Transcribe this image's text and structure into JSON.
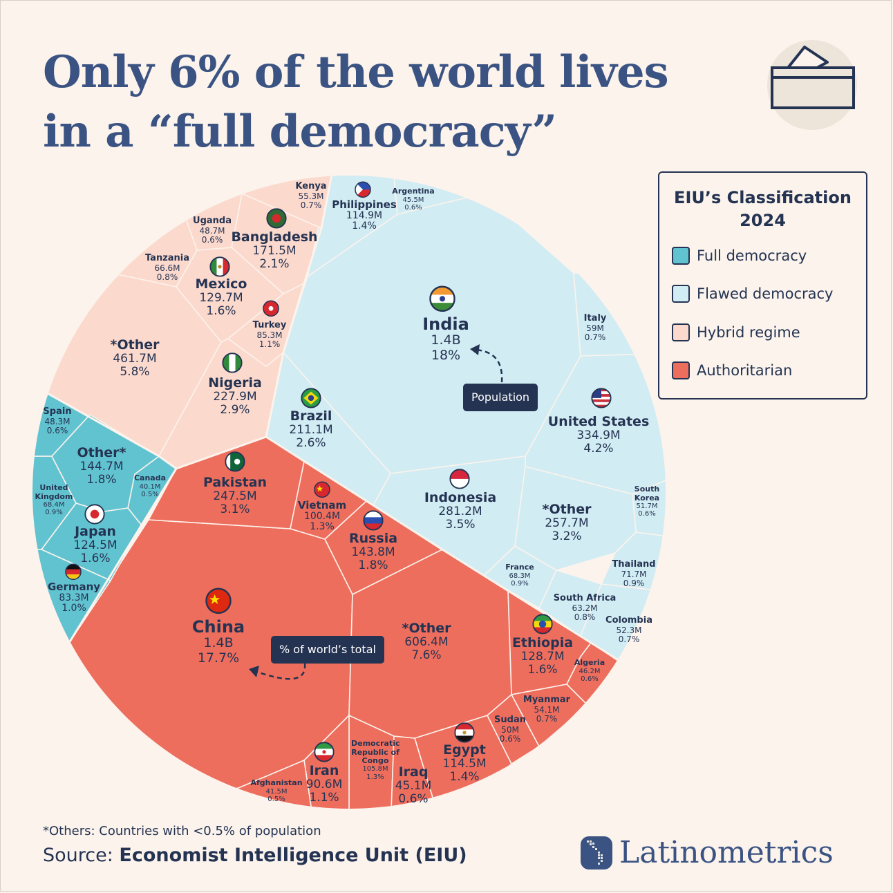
{
  "header": {
    "title_line1": "Only 6% of the world lives",
    "title_line2": "in a “full democracy”",
    "icon": "ballot-box-icon"
  },
  "legend": {
    "title_line1": "EIU’s Classification",
    "title_line2": "2024",
    "items": [
      {
        "label": "Full democracy",
        "color": "#62c3d0"
      },
      {
        "label": "Flawed democracy",
        "color": "#d2ecf3"
      },
      {
        "label": "Hybrid regime",
        "color": "#fcd9cd"
      },
      {
        "label": "Authoritarian",
        "color": "#ee6e5e"
      }
    ]
  },
  "annotations": {
    "population": "Population",
    "share": "% of world’s total"
  },
  "footer": {
    "note": "*Others: Countries with <0.5% of population",
    "source_prefix": "Source: ",
    "source_name": "Economist Intelligence Unit (EIU)",
    "brand": "Latinometrics"
  },
  "chart_data": {
    "type": "voronoi-treemap",
    "title": "Only 6% of the world lives in a “full democracy”",
    "legend_position": "right",
    "categories": [
      {
        "key": "full",
        "label": "Full democracy",
        "color": "#62c3d0"
      },
      {
        "key": "flawed",
        "label": "Flawed democracy",
        "color": "#d2ecf3"
      },
      {
        "key": "hybrid",
        "label": "Hybrid regime",
        "color": "#fcd9cd"
      },
      {
        "key": "authoritarian",
        "label": "Authoritarian",
        "color": "#ee6e5e"
      }
    ],
    "cells": [
      {
        "name": "India",
        "population": "1.4B",
        "share": "18%",
        "regime": "flawed",
        "flag": "india-flag-icon"
      },
      {
        "name": "China",
        "population": "1.4B",
        "share": "17.7%",
        "regime": "authoritarian",
        "flag": "china-flag-icon"
      },
      {
        "name": "United States",
        "population": "334.9M",
        "share": "4.2%",
        "regime": "flawed",
        "flag": "us-flag-icon"
      },
      {
        "name": "Indonesia",
        "population": "281.2M",
        "share": "3.5%",
        "regime": "flawed",
        "flag": "indonesia-flag-icon"
      },
      {
        "name": "Pakistan",
        "population": "247.5M",
        "share": "3.1%",
        "regime": "authoritarian",
        "flag": "pakistan-flag-icon"
      },
      {
        "name": "Nigeria",
        "population": "227.9M",
        "share": "2.9%",
        "regime": "hybrid",
        "flag": "nigeria-flag-icon"
      },
      {
        "name": "Brazil",
        "population": "211.1M",
        "share": "2.6%",
        "regime": "flawed",
        "flag": "brazil-flag-icon"
      },
      {
        "name": "Bangladesh",
        "population": "171.5M",
        "share": "2.1%",
        "regime": "hybrid",
        "flag": "bangladesh-flag-icon"
      },
      {
        "name": "Russia",
        "population": "143.8M",
        "share": "1.8%",
        "regime": "authoritarian",
        "flag": "russia-flag-icon"
      },
      {
        "name": "Mexico",
        "population": "129.7M",
        "share": "1.6%",
        "regime": "hybrid",
        "flag": "mexico-flag-icon"
      },
      {
        "name": "Ethiopia",
        "population": "128.7M",
        "share": "1.6%",
        "regime": "authoritarian",
        "flag": "ethiopia-flag-icon"
      },
      {
        "name": "Japan",
        "population": "124.5M",
        "share": "1.6%",
        "regime": "full",
        "flag": "japan-flag-icon"
      },
      {
        "name": "Philippines",
        "population": "114.9M",
        "share": "1.4%",
        "regime": "flawed",
        "flag": "philippines-flag-icon"
      },
      {
        "name": "Egypt",
        "population": "114.5M",
        "share": "1.4%",
        "regime": "authoritarian",
        "flag": "egypt-flag-icon"
      },
      {
        "name": "Democratic Republic of Congo",
        "population": "105.8M",
        "share": "1.3%",
        "regime": "authoritarian"
      },
      {
        "name": "Vietnam",
        "population": "100.4M",
        "share": "1.3%",
        "regime": "authoritarian",
        "flag": "vietnam-flag-icon"
      },
      {
        "name": "Iran",
        "population": "90.6M",
        "share": "1.1%",
        "regime": "authoritarian",
        "flag": "iran-flag-icon"
      },
      {
        "name": "Turkey",
        "population": "85.3M",
        "share": "1.1%",
        "regime": "hybrid",
        "flag": "turkey-flag-icon"
      },
      {
        "name": "Germany",
        "population": "83.3M",
        "share": "1.0%",
        "regime": "full",
        "flag": "germany-flag-icon"
      },
      {
        "name": "Thailand",
        "population": "71.7M",
        "share": "0.9%",
        "regime": "flawed"
      },
      {
        "name": "United Kingdom",
        "population": "68.4M",
        "share": "0.9%",
        "regime": "full"
      },
      {
        "name": "France",
        "population": "68.3M",
        "share": "0.9%",
        "regime": "flawed"
      },
      {
        "name": "Tanzania",
        "population": "66.6M",
        "share": "0.8%",
        "regime": "hybrid"
      },
      {
        "name": "South Africa",
        "population": "63.2M",
        "share": "0.8%",
        "regime": "flawed"
      },
      {
        "name": "Italy",
        "population": "59M",
        "share": "0.7%",
        "regime": "flawed"
      },
      {
        "name": "Kenya",
        "population": "55.3M",
        "share": "0.7%",
        "regime": "hybrid"
      },
      {
        "name": "Myanmar",
        "population": "54.1M",
        "share": "0.7%",
        "regime": "authoritarian"
      },
      {
        "name": "Colombia",
        "population": "52.3M",
        "share": "0.7%",
        "regime": "flawed"
      },
      {
        "name": "South Korea",
        "population": "51.7M",
        "share": "0.6%",
        "regime": "flawed"
      },
      {
        "name": "Sudan",
        "population": "50M",
        "share": "0.6%",
        "regime": "authoritarian"
      },
      {
        "name": "Uganda",
        "population": "48.7M",
        "share": "0.6%",
        "regime": "hybrid"
      },
      {
        "name": "Spain",
        "population": "48.3M",
        "share": "0.6%",
        "regime": "full"
      },
      {
        "name": "Algeria",
        "population": "46.2M",
        "share": "0.6%",
        "regime": "authoritarian"
      },
      {
        "name": "Argentina",
        "population": "45.5M",
        "share": "0.6%",
        "regime": "flawed"
      },
      {
        "name": "Iraq",
        "population": "45.1M",
        "share": "0.6%",
        "regime": "authoritarian"
      },
      {
        "name": "Afghanistan",
        "population": "41.5M",
        "share": "0.5%",
        "regime": "authoritarian"
      },
      {
        "name": "Canada",
        "population": "40.1M",
        "share": "0.5%",
        "regime": "full"
      },
      {
        "name": "*Other",
        "population": "461.7M",
        "share": "5.8%",
        "regime": "hybrid"
      },
      {
        "name": "*Other",
        "population": "606.4M",
        "share": "7.6%",
        "regime": "authoritarian"
      },
      {
        "name": "*Other",
        "population": "257.7M",
        "share": "3.2%",
        "regime": "flawed"
      },
      {
        "name": "Other*",
        "population": "144.7M",
        "share": "1.8%",
        "regime": "full"
      }
    ]
  }
}
